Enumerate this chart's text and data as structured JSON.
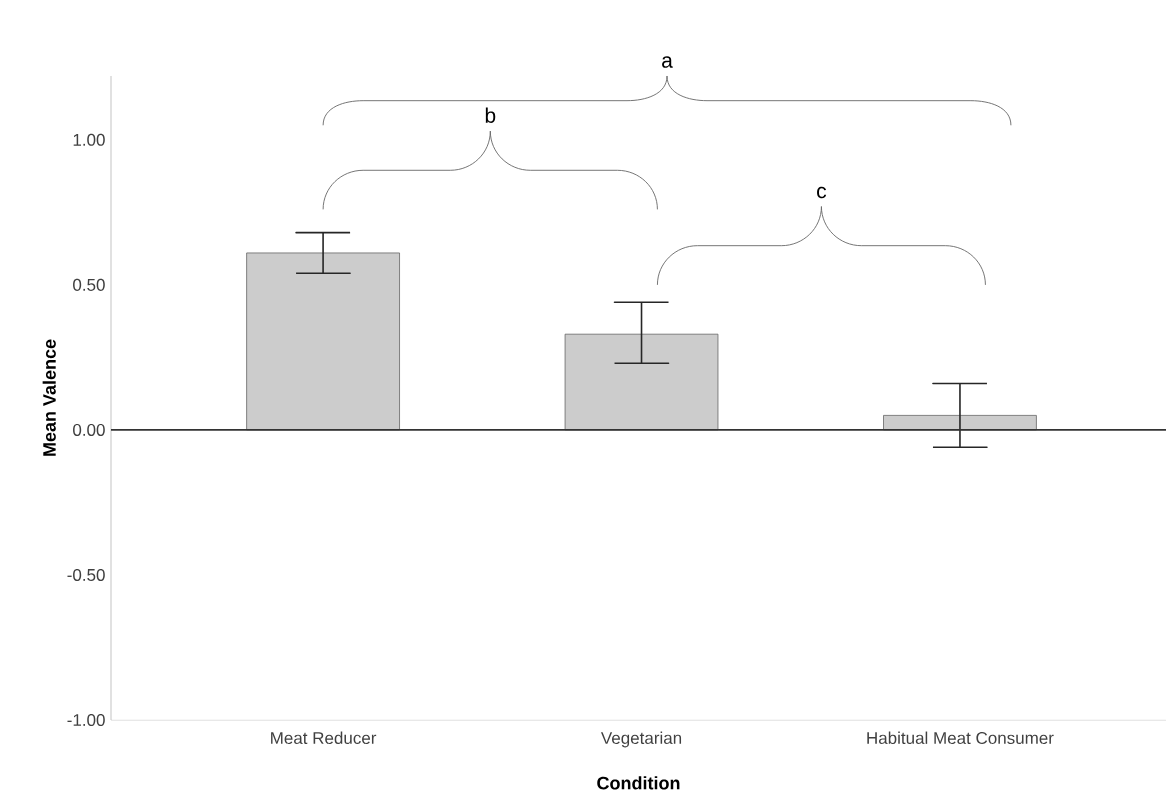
{
  "chart_data": {
    "type": "bar",
    "xlabel": "Condition",
    "ylabel": "Mean Valence",
    "categories": [
      "Meat Reducer",
      "Vegetarian",
      "Habitual Meat Consumer"
    ],
    "values": [
      0.61,
      0.33,
      0.05
    ],
    "errors": [
      [
        0.54,
        0.68
      ],
      [
        0.23,
        0.44
      ],
      [
        -0.06,
        0.16
      ]
    ],
    "color": "#cccccc",
    "ylim": [
      -1,
      1.22
    ],
    "yticks": [
      {
        "value": -1,
        "label": "-1.00"
      },
      {
        "value": -0.5,
        "label": "-0.50"
      },
      {
        "value": 0,
        "label": "0.00"
      },
      {
        "value": 0.5,
        "label": "0.50"
      },
      {
        "value": 1,
        "label": "1.00"
      }
    ],
    "ref_lines": [
      {
        "axis": "y",
        "value": 0,
        "color": "#333333"
      }
    ],
    "annotations": [
      "a",
      "b",
      "c"
    ]
  }
}
